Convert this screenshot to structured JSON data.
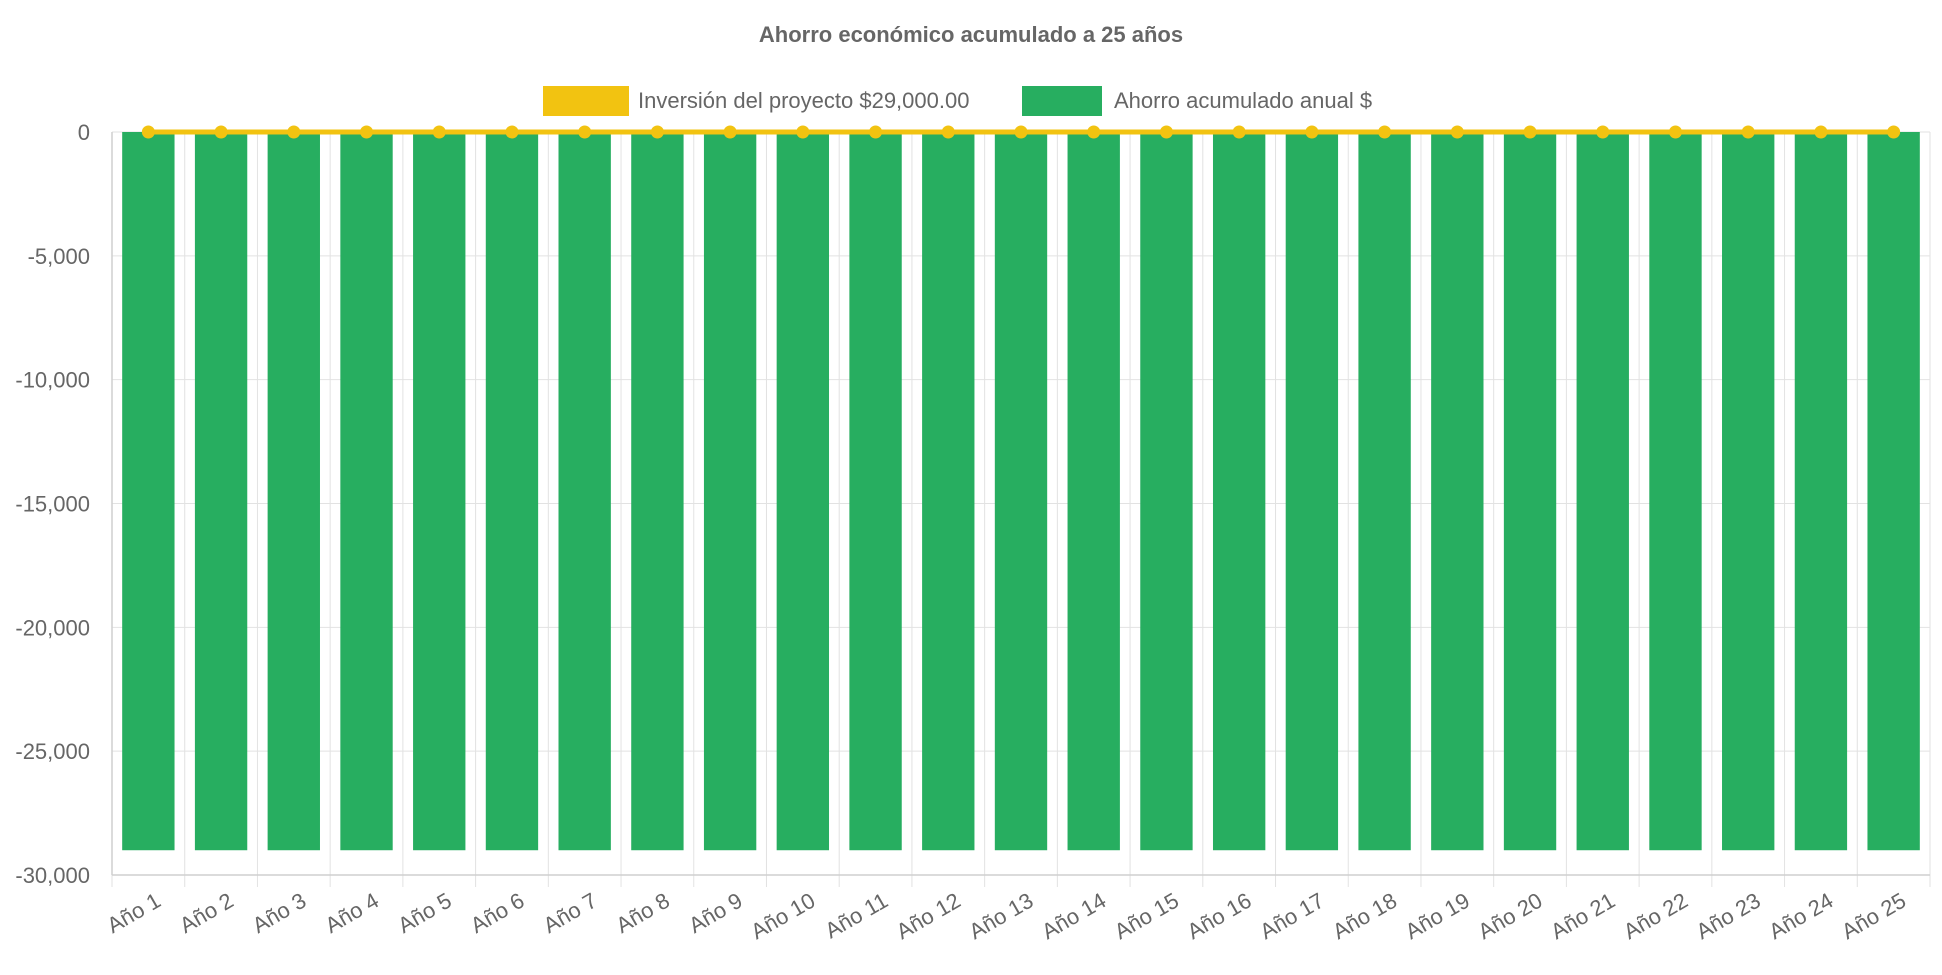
{
  "chart_data": {
    "type": "bar",
    "title": "Ahorro económico acumulado a 25 años",
    "legend_position": "top-center",
    "grid": true,
    "ylim": [
      -30000,
      0
    ],
    "yticks": [
      0,
      -5000,
      -10000,
      -15000,
      -20000,
      -25000,
      -30000
    ],
    "ytick_labels": [
      "0",
      "-5,000",
      "-10,000",
      "-15,000",
      "-20,000",
      "-25,000",
      "-30,000"
    ],
    "categories": [
      "Año 1",
      "Año 2",
      "Año 3",
      "Año 4",
      "Año 5",
      "Año 6",
      "Año 7",
      "Año 8",
      "Año 9",
      "Año 10",
      "Año 11",
      "Año 12",
      "Año 13",
      "Año 14",
      "Año 15",
      "Año 16",
      "Año 17",
      "Año 18",
      "Año 19",
      "Año 20",
      "Año 21",
      "Año 22",
      "Año 23",
      "Año 24",
      "Año 25"
    ],
    "series": [
      {
        "name": "Inversión del proyecto $29,000.00",
        "type": "line",
        "color": "#f2c311",
        "values": [
          0,
          0,
          0,
          0,
          0,
          0,
          0,
          0,
          0,
          0,
          0,
          0,
          0,
          0,
          0,
          0,
          0,
          0,
          0,
          0,
          0,
          0,
          0,
          0,
          0
        ]
      },
      {
        "name": "Ahorro acumulado anual $",
        "type": "bar",
        "color": "#27ae60",
        "values": [
          -29000,
          -29000,
          -29000,
          -29000,
          -29000,
          -29000,
          -29000,
          -29000,
          -29000,
          -29000,
          -29000,
          -29000,
          -29000,
          -29000,
          -29000,
          -29000,
          -29000,
          -29000,
          -29000,
          -29000,
          -29000,
          -29000,
          -29000,
          -29000,
          -29000
        ]
      }
    ]
  }
}
